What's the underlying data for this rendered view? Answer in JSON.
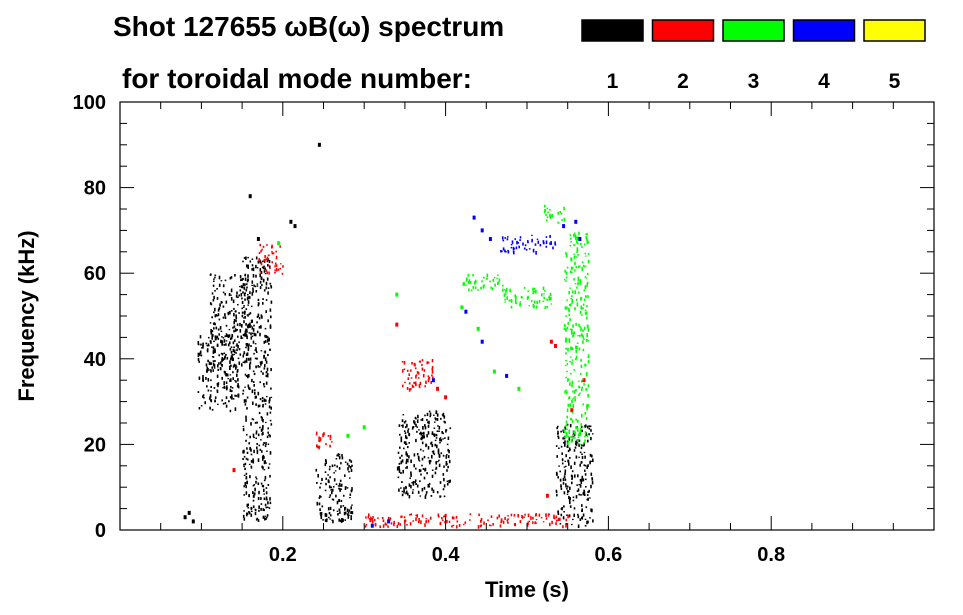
{
  "chart_data": {
    "type": "scatter",
    "title_line1": "Shot 127655 ωB(ω) spectrum",
    "title_line2": "for toroidal mode number:",
    "xlabel": "Time (s)",
    "ylabel": "Frequency (kHz)",
    "xlim": [
      0.0,
      1.0
    ],
    "ylim": [
      0,
      100
    ],
    "x_ticks": [
      0.2,
      0.4,
      0.6,
      0.8
    ],
    "x_tick_labels": [
      "0.2",
      "0.4",
      "0.6",
      "0.8"
    ],
    "y_ticks": [
      0,
      20,
      40,
      60,
      80,
      100
    ],
    "y_tick_labels": [
      "0",
      "20",
      "40",
      "60",
      "80",
      "100"
    ],
    "legend": {
      "placement": "top-right",
      "entries": [
        {
          "label": "1",
          "color": "#000000"
        },
        {
          "label": "2",
          "color": "#ff0000"
        },
        {
          "label": "3",
          "color": "#00ff00"
        },
        {
          "label": "4",
          "color": "#0000ff"
        },
        {
          "label": "5",
          "color": "#ffff00"
        }
      ]
    },
    "series": [
      {
        "name": "n=1",
        "color": "#000000",
        "clusters": [
          {
            "t": [
              0.095,
              0.145
            ],
            "f": [
              28,
              46
            ]
          },
          {
            "t": [
              0.11,
              0.16
            ],
            "f": [
              38,
              60
            ]
          },
          {
            "t": [
              0.15,
              0.185
            ],
            "f": [
              2,
              64
            ]
          },
          {
            "t": [
              0.24,
              0.285
            ],
            "f": [
              2,
              18
            ]
          },
          {
            "t": [
              0.34,
              0.405
            ],
            "f": [
              8,
              28
            ]
          },
          {
            "t": [
              0.535,
              0.58
            ],
            "f": [
              1,
              25
            ]
          }
        ],
        "points": [
          {
            "t": 0.08,
            "f": 3
          },
          {
            "t": 0.085,
            "f": 4
          },
          {
            "t": 0.09,
            "f": 2
          },
          {
            "t": 0.21,
            "f": 72
          },
          {
            "t": 0.215,
            "f": 71
          },
          {
            "t": 0.245,
            "f": 90
          },
          {
            "t": 0.16,
            "f": 78
          },
          {
            "t": 0.17,
            "f": 68
          }
        ]
      },
      {
        "name": "n=2",
        "color": "#ff0000",
        "clusters": [
          {
            "t": [
              0.17,
              0.2
            ],
            "f": [
              60,
              67
            ]
          },
          {
            "t": [
              0.24,
              0.26
            ],
            "f": [
              19,
              23
            ]
          },
          {
            "t": [
              0.345,
              0.385
            ],
            "f": [
              33,
              40
            ]
          },
          {
            "t": [
              0.3,
              0.55
            ],
            "f": [
              1,
              4
            ]
          }
        ],
        "points": [
          {
            "t": 0.39,
            "f": 33
          },
          {
            "t": 0.4,
            "f": 31
          },
          {
            "t": 0.53,
            "f": 44
          },
          {
            "t": 0.535,
            "f": 43
          },
          {
            "t": 0.555,
            "f": 28
          },
          {
            "t": 0.57,
            "f": 35
          },
          {
            "t": 0.525,
            "f": 8
          },
          {
            "t": 0.14,
            "f": 14
          },
          {
            "t": 0.34,
            "f": 48
          }
        ]
      },
      {
        "name": "n=3",
        "color": "#00ff00",
        "clusters": [
          {
            "t": [
              0.42,
              0.47
            ],
            "f": [
              56,
              60
            ]
          },
          {
            "t": [
              0.47,
              0.53
            ],
            "f": [
              52,
              57
            ]
          },
          {
            "t": [
              0.52,
              0.545
            ],
            "f": [
              72,
              76
            ]
          },
          {
            "t": [
              0.545,
              0.575
            ],
            "f": [
              20,
              70
            ]
          }
        ],
        "points": [
          {
            "t": 0.28,
            "f": 22
          },
          {
            "t": 0.3,
            "f": 24
          },
          {
            "t": 0.34,
            "f": 55
          },
          {
            "t": 0.42,
            "f": 52
          },
          {
            "t": 0.44,
            "f": 47
          },
          {
            "t": 0.46,
            "f": 37
          },
          {
            "t": 0.49,
            "f": 33
          },
          {
            "t": 0.195,
            "f": 67
          }
        ]
      },
      {
        "name": "n=4",
        "color": "#0000ff",
        "clusters": [
          {
            "t": [
              0.465,
              0.535
            ],
            "f": [
              65,
              69
            ]
          }
        ],
        "points": [
          {
            "t": 0.435,
            "f": 73
          },
          {
            "t": 0.445,
            "f": 70
          },
          {
            "t": 0.455,
            "f": 68
          },
          {
            "t": 0.545,
            "f": 71
          },
          {
            "t": 0.56,
            "f": 72
          },
          {
            "t": 0.565,
            "f": 68
          },
          {
            "t": 0.385,
            "f": 35
          },
          {
            "t": 0.425,
            "f": 51
          },
          {
            "t": 0.445,
            "f": 44
          },
          {
            "t": 0.475,
            "f": 36
          },
          {
            "t": 0.31,
            "f": 1
          },
          {
            "t": 0.33,
            "f": 2
          }
        ]
      },
      {
        "name": "n=5",
        "color": "#ffff00",
        "clusters": [],
        "points": []
      }
    ]
  }
}
